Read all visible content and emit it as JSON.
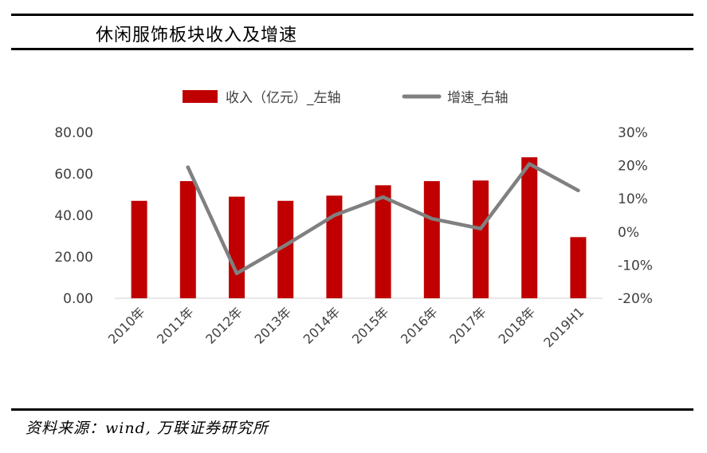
{
  "header": {
    "title": "休闲服饰板块收入及增速"
  },
  "footer": {
    "source": "资料来源：wind, 万联证券研究所"
  },
  "chart_data": {
    "type": "bar",
    "categories": [
      "2010年",
      "2011年",
      "2012年",
      "2013年",
      "2014年",
      "2015年",
      "2016年",
      "2017年",
      "2018年",
      "2019H1"
    ],
    "series": [
      {
        "name": "收入（亿元）_左轴",
        "type": "bar",
        "axis": "left",
        "color": "#C00000",
        "values": [
          47.0,
          56.5,
          49.0,
          47.0,
          49.5,
          54.5,
          56.5,
          56.8,
          68.0,
          29.5
        ]
      },
      {
        "name": "增速_右轴",
        "type": "line",
        "axis": "right",
        "color": "#808080",
        "values": [
          null,
          19.5,
          -12.5,
          -4.0,
          5.0,
          10.5,
          4.0,
          1.0,
          20.5,
          12.5
        ]
      }
    ],
    "left_axis": {
      "ylim": [
        0,
        80
      ],
      "ticks": [
        "80.00",
        "60.00",
        "40.00",
        "20.00",
        "0.00"
      ],
      "tick_values": [
        80,
        60,
        40,
        20,
        0
      ]
    },
    "right_axis": {
      "ylim": [
        -20,
        30
      ],
      "ticks": [
        "30%",
        "20%",
        "10%",
        "0%",
        "-10%",
        "-20%"
      ],
      "tick_values": [
        30,
        20,
        10,
        0,
        -10,
        -20
      ]
    },
    "legend": {
      "position": "top",
      "items": [
        "收入（亿元）_左轴",
        "增速_右轴"
      ]
    },
    "grid": false
  }
}
